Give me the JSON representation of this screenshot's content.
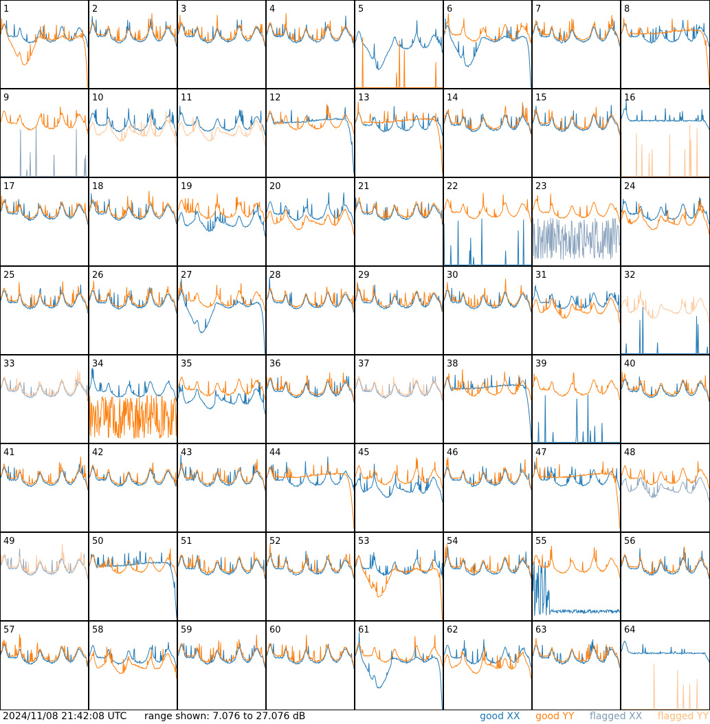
{
  "footer": {
    "timestamp": "2024/11/08 21:42:08 UTC",
    "range_text": "range shown: 7.076 to 27.076 dB",
    "legend": {
      "good_xx": "good XX",
      "good_yy": "good YY",
      "flagged_xx": "flagged XX",
      "flagged_yy": "flagged YY"
    }
  },
  "colors": {
    "good_xx": "#1f77b4",
    "good_yy": "#ff7f0e",
    "flagged_xx": "#8ca4be",
    "flagged_yy": "#ffc69a"
  },
  "chart_data": {
    "type": "line",
    "ylim": [
      7.076,
      27.076
    ],
    "grid": "8x8",
    "panels": [
      {
        "label": "1",
        "xx": {
          "status": "good",
          "profile": "normal"
        },
        "yy": {
          "status": "good",
          "profile": "dip"
        }
      },
      {
        "label": "2",
        "xx": {
          "status": "good",
          "profile": "normal"
        },
        "yy": {
          "status": "good",
          "profile": "normal"
        }
      },
      {
        "label": "3",
        "xx": {
          "status": "good",
          "profile": "normal"
        },
        "yy": {
          "status": "good",
          "profile": "normal"
        }
      },
      {
        "label": "4",
        "xx": {
          "status": "good",
          "profile": "normal"
        },
        "yy": {
          "status": "good",
          "profile": "normal"
        }
      },
      {
        "label": "5",
        "xx": {
          "status": "good",
          "profile": "lowdip"
        },
        "yy": {
          "status": "good",
          "profile": "spikes"
        }
      },
      {
        "label": "6",
        "xx": {
          "status": "good",
          "profile": "dip"
        },
        "yy": {
          "status": "good",
          "profile": "normal"
        }
      },
      {
        "label": "7",
        "xx": {
          "status": "good",
          "profile": "normal"
        },
        "yy": {
          "status": "good",
          "profile": "normal"
        }
      },
      {
        "label": "8",
        "xx": {
          "status": "good",
          "profile": "normal"
        },
        "yy": {
          "status": "good",
          "profile": "smooth_drop"
        }
      },
      {
        "label": "9",
        "xx": {
          "status": "flagged",
          "profile": "spikes"
        },
        "yy": {
          "status": "good",
          "profile": "normal"
        }
      },
      {
        "label": "10",
        "xx": {
          "status": "good",
          "profile": "normal"
        },
        "yy": {
          "status": "flagged",
          "profile": "low"
        }
      },
      {
        "label": "11",
        "xx": {
          "status": "good",
          "profile": "normal"
        },
        "yy": {
          "status": "flagged",
          "profile": "low"
        }
      },
      {
        "label": "12",
        "xx": {
          "status": "good",
          "profile": "smooth_drop"
        },
        "yy": {
          "status": "good",
          "profile": "normal"
        }
      },
      {
        "label": "13",
        "xx": {
          "status": "good",
          "profile": "normal"
        },
        "yy": {
          "status": "good",
          "profile": "smooth_drop"
        }
      },
      {
        "label": "14",
        "xx": {
          "status": "good",
          "profile": "normal"
        },
        "yy": {
          "status": "good",
          "profile": "normal"
        }
      },
      {
        "label": "15",
        "xx": {
          "status": "good",
          "profile": "normal"
        },
        "yy": {
          "status": "good",
          "profile": "normal"
        }
      },
      {
        "label": "16",
        "xx": {
          "status": "good",
          "profile": "flat"
        },
        "yy": {
          "status": "flagged",
          "profile": "spikes"
        }
      },
      {
        "label": "17",
        "xx": {
          "status": "good",
          "profile": "normal"
        },
        "yy": {
          "status": "good",
          "profile": "normal"
        }
      },
      {
        "label": "18",
        "xx": {
          "status": "good",
          "profile": "normal"
        },
        "yy": {
          "status": "good",
          "profile": "normal"
        }
      },
      {
        "label": "19",
        "xx": {
          "status": "good",
          "profile": "low"
        },
        "yy": {
          "status": "good",
          "profile": "normal"
        }
      },
      {
        "label": "20",
        "xx": {
          "status": "good",
          "profile": "normal"
        },
        "yy": {
          "status": "good",
          "profile": "low"
        }
      },
      {
        "label": "21",
        "xx": {
          "status": "good",
          "profile": "normal"
        },
        "yy": {
          "status": "good",
          "profile": "normal"
        }
      },
      {
        "label": "22",
        "xx": {
          "status": "good",
          "profile": "spikes"
        },
        "yy": {
          "status": "good",
          "profile": "normal"
        }
      },
      {
        "label": "23",
        "xx": {
          "status": "flagged",
          "profile": "noisy"
        },
        "yy": {
          "status": "good",
          "profile": "normal"
        }
      },
      {
        "label": "24",
        "xx": {
          "status": "good",
          "profile": "normal"
        },
        "yy": {
          "status": "good",
          "profile": "low"
        }
      },
      {
        "label": "25",
        "xx": {
          "status": "good",
          "profile": "normal"
        },
        "yy": {
          "status": "good",
          "profile": "normal"
        }
      },
      {
        "label": "26",
        "xx": {
          "status": "good",
          "profile": "normal"
        },
        "yy": {
          "status": "good",
          "profile": "normal"
        }
      },
      {
        "label": "27",
        "xx": {
          "status": "good",
          "profile": "dip"
        },
        "yy": {
          "status": "good",
          "profile": "normal"
        }
      },
      {
        "label": "28",
        "xx": {
          "status": "good",
          "profile": "normal"
        },
        "yy": {
          "status": "good",
          "profile": "normal"
        }
      },
      {
        "label": "29",
        "xx": {
          "status": "good",
          "profile": "normal"
        },
        "yy": {
          "status": "good",
          "profile": "normal"
        }
      },
      {
        "label": "30",
        "xx": {
          "status": "good",
          "profile": "normal"
        },
        "yy": {
          "status": "good",
          "profile": "normal"
        }
      },
      {
        "label": "31",
        "xx": {
          "status": "good",
          "profile": "normal"
        },
        "yy": {
          "status": "good",
          "profile": "low"
        }
      },
      {
        "label": "32",
        "xx": {
          "status": "good",
          "profile": "spikes"
        },
        "yy": {
          "status": "flagged",
          "profile": "low"
        }
      },
      {
        "label": "33",
        "xx": {
          "status": "flagged",
          "profile": "normal"
        },
        "yy": {
          "status": "flagged",
          "profile": "normal"
        }
      },
      {
        "label": "34",
        "xx": {
          "status": "good",
          "profile": "normal"
        },
        "yy": {
          "status": "good",
          "profile": "noisy"
        }
      },
      {
        "label": "35",
        "xx": {
          "status": "good",
          "profile": "low"
        },
        "yy": {
          "status": "good",
          "profile": "normal"
        }
      },
      {
        "label": "36",
        "xx": {
          "status": "good",
          "profile": "normal"
        },
        "yy": {
          "status": "good",
          "profile": "normal"
        }
      },
      {
        "label": "37",
        "xx": {
          "status": "flagged",
          "profile": "normal"
        },
        "yy": {
          "status": "flagged",
          "profile": "normal"
        }
      },
      {
        "label": "38",
        "xx": {
          "status": "good",
          "profile": "smooth_drop"
        },
        "yy": {
          "status": "good",
          "profile": "normal"
        }
      },
      {
        "label": "39",
        "xx": {
          "status": "good",
          "profile": "spikes"
        },
        "yy": {
          "status": "good",
          "profile": "normal"
        }
      },
      {
        "label": "40",
        "xx": {
          "status": "good",
          "profile": "normal"
        },
        "yy": {
          "status": "good",
          "profile": "normal"
        }
      },
      {
        "label": "41",
        "xx": {
          "status": "good",
          "profile": "normal"
        },
        "yy": {
          "status": "good",
          "profile": "normal"
        }
      },
      {
        "label": "42",
        "xx": {
          "status": "good",
          "profile": "normal"
        },
        "yy": {
          "status": "good",
          "profile": "normal"
        }
      },
      {
        "label": "43",
        "xx": {
          "status": "good",
          "profile": "normal"
        },
        "yy": {
          "status": "good",
          "profile": "normal"
        }
      },
      {
        "label": "44",
        "xx": {
          "status": "good",
          "profile": "normal"
        },
        "yy": {
          "status": "good",
          "profile": "smooth_drop"
        }
      },
      {
        "label": "45",
        "xx": {
          "status": "good",
          "profile": "low"
        },
        "yy": {
          "status": "good",
          "profile": "normal"
        }
      },
      {
        "label": "46",
        "xx": {
          "status": "good",
          "profile": "normal"
        },
        "yy": {
          "status": "good",
          "profile": "normal"
        }
      },
      {
        "label": "47",
        "xx": {
          "status": "good",
          "profile": "normal"
        },
        "yy": {
          "status": "good",
          "profile": "smooth_drop"
        }
      },
      {
        "label": "48",
        "xx": {
          "status": "flagged",
          "profile": "low"
        },
        "yy": {
          "status": "good",
          "profile": "normal"
        }
      },
      {
        "label": "49",
        "xx": {
          "status": "flagged",
          "profile": "normal"
        },
        "yy": {
          "status": "flagged",
          "profile": "normal"
        }
      },
      {
        "label": "50",
        "xx": {
          "status": "good",
          "profile": "smooth_drop"
        },
        "yy": {
          "status": "good",
          "profile": "normal"
        }
      },
      {
        "label": "51",
        "xx": {
          "status": "good",
          "profile": "normal"
        },
        "yy": {
          "status": "good",
          "profile": "normal"
        }
      },
      {
        "label": "52",
        "xx": {
          "status": "good",
          "profile": "normal"
        },
        "yy": {
          "status": "good",
          "profile": "normal"
        }
      },
      {
        "label": "53",
        "xx": {
          "status": "good",
          "profile": "normal"
        },
        "yy": {
          "status": "good",
          "profile": "dip"
        }
      },
      {
        "label": "54",
        "xx": {
          "status": "good",
          "profile": "normal"
        },
        "yy": {
          "status": "good",
          "profile": "normal"
        }
      },
      {
        "label": "55",
        "xx": {
          "status": "good",
          "profile": "noisy_low"
        },
        "yy": {
          "status": "good",
          "profile": "normal"
        }
      },
      {
        "label": "56",
        "xx": {
          "status": "good",
          "profile": "normal"
        },
        "yy": {
          "status": "good",
          "profile": "normal"
        }
      },
      {
        "label": "57",
        "xx": {
          "status": "good",
          "profile": "normal"
        },
        "yy": {
          "status": "good",
          "profile": "normal"
        }
      },
      {
        "label": "58",
        "xx": {
          "status": "good",
          "profile": "normal"
        },
        "yy": {
          "status": "good",
          "profile": "low"
        }
      },
      {
        "label": "59",
        "xx": {
          "status": "good",
          "profile": "normal"
        },
        "yy": {
          "status": "good",
          "profile": "normal"
        }
      },
      {
        "label": "60",
        "xx": {
          "status": "good",
          "profile": "normal"
        },
        "yy": {
          "status": "good",
          "profile": "normal"
        }
      },
      {
        "label": "61",
        "xx": {
          "status": "good",
          "profile": "dip"
        },
        "yy": {
          "status": "good",
          "profile": "normal"
        }
      },
      {
        "label": "62",
        "xx": {
          "status": "good",
          "profile": "normal"
        },
        "yy": {
          "status": "good",
          "profile": "low"
        }
      },
      {
        "label": "63",
        "xx": {
          "status": "good",
          "profile": "normal"
        },
        "yy": {
          "status": "good",
          "profile": "normal"
        }
      },
      {
        "label": "64",
        "xx": {
          "status": "good",
          "profile": "flat"
        },
        "yy": {
          "status": "flagged",
          "profile": "spikes"
        }
      }
    ]
  }
}
